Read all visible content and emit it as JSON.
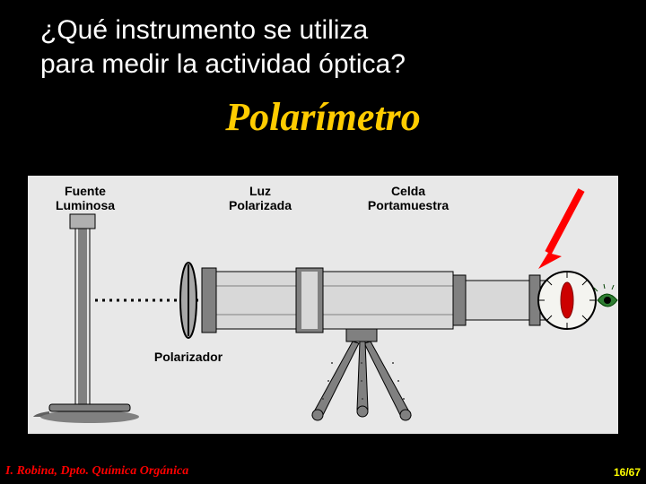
{
  "question_line1": "¿Qué instrumento se utiliza",
  "question_line2": "para medir la actividad óptica?",
  "answer": "Polarímetro",
  "labels": {
    "source": "Fuente\nLuminosa",
    "polarized": "Luz\nPolarizada",
    "cell": "Celda\nPortamuestra",
    "polarizer": "Polarizador"
  },
  "footer": "I. Robina,  Dpto. Química Orgánica",
  "page": "16/67",
  "colors": {
    "answer": "#ffcc00",
    "question": "#ffffff",
    "footer": "#ff0000",
    "page": "#ffff00",
    "diagram_bg": "#e8e8e8",
    "arrow": "#ff0000",
    "tube_light": "#d8d8d8",
    "tube_dark": "#808080",
    "metal": "#b0b0b0"
  }
}
